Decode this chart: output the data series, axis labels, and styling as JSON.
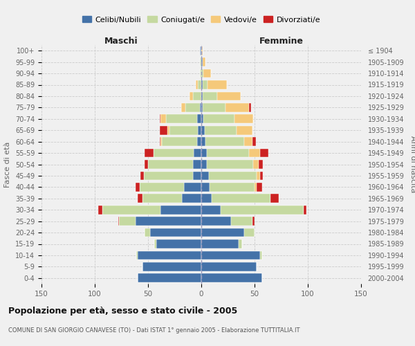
{
  "age_groups": [
    "0-4",
    "5-9",
    "10-14",
    "15-19",
    "20-24",
    "25-29",
    "30-34",
    "35-39",
    "40-44",
    "45-49",
    "50-54",
    "55-59",
    "60-64",
    "65-69",
    "70-74",
    "75-79",
    "80-84",
    "85-89",
    "90-94",
    "95-99",
    "100+"
  ],
  "year_labels": [
    "2000-2004",
    "1995-1999",
    "1990-1994",
    "1985-1989",
    "1980-1984",
    "1975-1979",
    "1970-1974",
    "1965-1969",
    "1960-1964",
    "1955-1959",
    "1950-1954",
    "1945-1949",
    "1940-1944",
    "1935-1939",
    "1930-1934",
    "1925-1929",
    "1920-1924",
    "1915-1919",
    "1910-1914",
    "1905-1909",
    "≤ 1904"
  ],
  "maschi": {
    "celibi": [
      60,
      55,
      60,
      42,
      48,
      62,
      38,
      18,
      16,
      8,
      8,
      7,
      4,
      3,
      4,
      1,
      0,
      0,
      0,
      0,
      1
    ],
    "coniugati": [
      0,
      0,
      1,
      2,
      5,
      15,
      55,
      37,
      42,
      46,
      42,
      38,
      33,
      27,
      29,
      14,
      8,
      3,
      1,
      1,
      0
    ],
    "vedovi": [
      0,
      0,
      0,
      0,
      0,
      0,
      0,
      0,
      0,
      0,
      0,
      0,
      1,
      2,
      5,
      4,
      3,
      2,
      0,
      0,
      0
    ],
    "divorziati": [
      0,
      0,
      0,
      0,
      0,
      1,
      4,
      5,
      4,
      3,
      3,
      8,
      1,
      7,
      1,
      0,
      0,
      0,
      0,
      0,
      0
    ]
  },
  "femmine": {
    "nubili": [
      57,
      52,
      55,
      35,
      40,
      28,
      18,
      10,
      8,
      7,
      5,
      5,
      4,
      3,
      2,
      1,
      1,
      1,
      0,
      1,
      0
    ],
    "coniugate": [
      0,
      0,
      2,
      3,
      10,
      20,
      78,
      55,
      42,
      45,
      44,
      40,
      36,
      30,
      29,
      22,
      14,
      5,
      2,
      0,
      0
    ],
    "vedove": [
      0,
      0,
      0,
      0,
      0,
      0,
      0,
      0,
      2,
      3,
      5,
      10,
      8,
      15,
      18,
      22,
      22,
      18,
      7,
      3,
      1
    ],
    "divorziate": [
      0,
      0,
      0,
      0,
      0,
      2,
      3,
      8,
      5,
      3,
      4,
      8,
      3,
      0,
      0,
      2,
      0,
      0,
      0,
      0,
      0
    ]
  },
  "colors": {
    "celibi": "#4472a8",
    "coniugati": "#c5d9a0",
    "vedovi": "#f5c97a",
    "divorziati": "#cc2222"
  },
  "xlim": 150,
  "title": "Popolazione per età, sesso e stato civile - 2005",
  "subtitle": "COMUNE DI SAN GIORGIO CANAVESE (TO) - Dati ISTAT 1° gennaio 2005 - Elaborazione TUTTITALIA.IT",
  "legend_labels": [
    "Celibi/Nubili",
    "Coniugati/e",
    "Vedovi/e",
    "Divorziati/e"
  ],
  "ylabel_left": "Fasce di età",
  "ylabel_right": "Anni di nascita",
  "xlabel_left": "Maschi",
  "xlabel_right": "Femmine"
}
